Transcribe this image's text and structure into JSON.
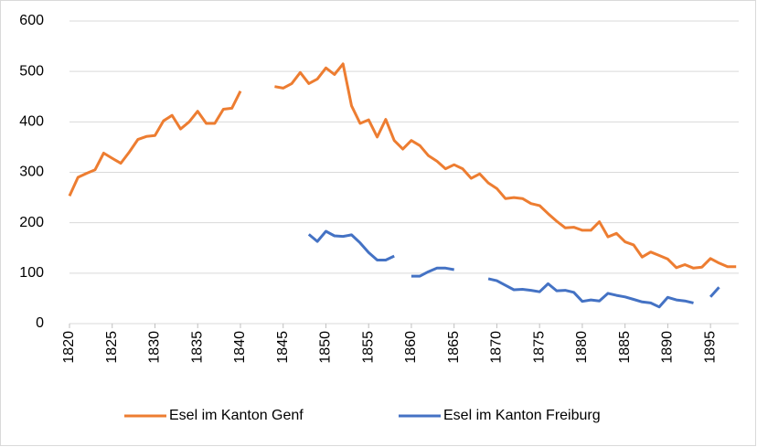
{
  "chart_data": {
    "type": "line",
    "x": [
      1820,
      1821,
      1822,
      1823,
      1824,
      1825,
      1826,
      1827,
      1828,
      1829,
      1830,
      1831,
      1832,
      1833,
      1834,
      1835,
      1836,
      1837,
      1838,
      1839,
      1840,
      1841,
      1842,
      1843,
      1844,
      1845,
      1846,
      1847,
      1848,
      1849,
      1850,
      1851,
      1852,
      1853,
      1854,
      1855,
      1856,
      1857,
      1858,
      1859,
      1860,
      1861,
      1862,
      1863,
      1864,
      1865,
      1866,
      1867,
      1868,
      1869,
      1870,
      1871,
      1872,
      1873,
      1874,
      1875,
      1876,
      1877,
      1878,
      1879,
      1880,
      1881,
      1882,
      1883,
      1884,
      1885,
      1886,
      1887,
      1888,
      1889,
      1890,
      1891,
      1892,
      1893,
      1894,
      1895,
      1896,
      1897,
      1898
    ],
    "series": [
      {
        "name": "Esel im Kanton Genf",
        "color": "#ed7d31",
        "values": [
          253,
          290,
          298,
          305,
          338,
          328,
          318,
          340,
          365,
          371,
          373,
          402,
          413,
          386,
          400,
          421,
          397,
          397,
          425,
          427,
          461,
          null,
          null,
          null,
          470,
          467,
          476,
          498,
          476,
          485,
          507,
          494,
          515,
          432,
          397,
          404,
          370,
          405,
          363,
          346,
          363,
          353,
          333,
          322,
          307,
          315,
          307,
          288,
          297,
          279,
          268,
          248,
          250,
          248,
          238,
          234,
          218,
          203,
          190,
          191,
          185,
          185,
          202,
          172,
          179,
          162,
          156,
          132,
          142,
          135,
          128,
          111,
          117,
          110,
          112,
          129,
          120,
          113,
          113
        ]
      },
      {
        "name": "Esel im Kanton Freiburg",
        "color": "#4472c4",
        "values": [
          null,
          null,
          null,
          null,
          null,
          null,
          null,
          null,
          null,
          null,
          null,
          null,
          null,
          null,
          null,
          null,
          null,
          null,
          null,
          null,
          null,
          null,
          null,
          null,
          null,
          null,
          null,
          null,
          177,
          163,
          183,
          174,
          173,
          176,
          160,
          141,
          126,
          126,
          134,
          null,
          94,
          94,
          103,
          110,
          110,
          107,
          null,
          null,
          null,
          89,
          85,
          76,
          67,
          68,
          66,
          63,
          79,
          65,
          66,
          62,
          44,
          47,
          45,
          60,
          56,
          53,
          48,
          43,
          41,
          33,
          52,
          47,
          45,
          41,
          null,
          53,
          72,
          null,
          null
        ]
      }
    ],
    "xlim": [
      1820,
      1898.3
    ],
    "xticks": [
      1820,
      1825,
      1830,
      1835,
      1840,
      1845,
      1850,
      1855,
      1860,
      1865,
      1870,
      1875,
      1880,
      1885,
      1890,
      1895
    ],
    "ylim": [
      0,
      600
    ],
    "yticks": [
      0,
      100,
      200,
      300,
      400,
      500,
      600
    ],
    "grid": true,
    "legend": "bottom"
  }
}
